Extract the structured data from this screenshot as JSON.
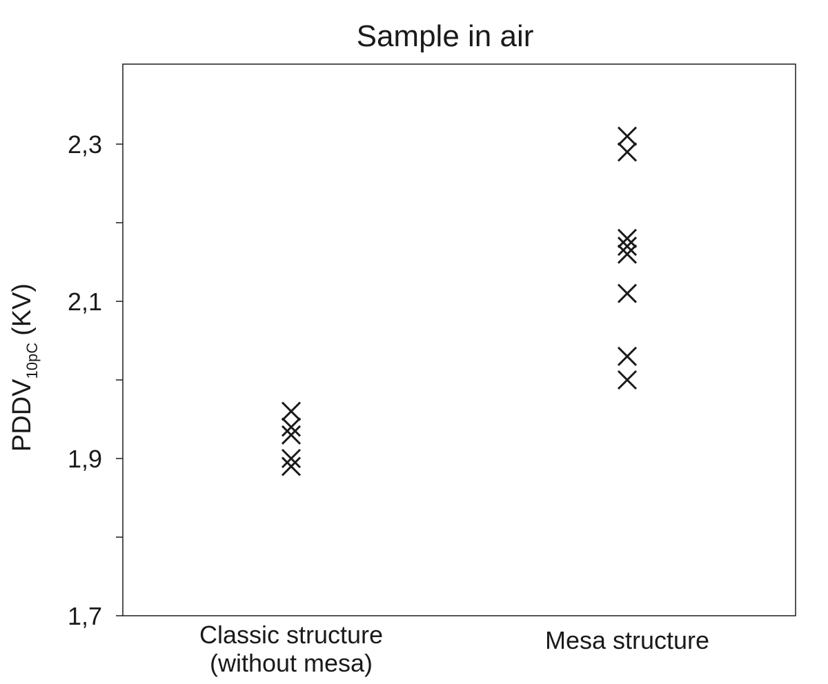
{
  "chart_data": {
    "type": "scatter",
    "title": "Sample in air",
    "ylabel": {
      "main_before": "PDDV",
      "subscript": "10pC",
      "main_after": "(KV)"
    },
    "categories": [
      [
        "Classic structure",
        "(without mesa)"
      ],
      [
        "Mesa structure"
      ]
    ],
    "series": [
      {
        "marker": "x",
        "color": "#1a1a1a",
        "points": [
          {
            "category": 0,
            "y": 1.96
          },
          {
            "category": 0,
            "y": 1.94
          },
          {
            "category": 0,
            "y": 1.93
          },
          {
            "category": 0,
            "y": 1.9
          },
          {
            "category": 0,
            "y": 1.89
          },
          {
            "category": 1,
            "y": 2.31
          },
          {
            "category": 1,
            "y": 2.29
          },
          {
            "category": 1,
            "y": 2.18
          },
          {
            "category": 1,
            "y": 2.17
          },
          {
            "category": 1,
            "y": 2.16
          },
          {
            "category": 1,
            "y": 2.11
          },
          {
            "category": 1,
            "y": 2.03
          },
          {
            "category": 1,
            "y": 2.0
          }
        ]
      }
    ],
    "ylim": [
      1.7,
      2.39
    ],
    "yticks_major": [
      1.7,
      1.9,
      2.1,
      2.3
    ],
    "ytick_labels": [
      "1,7",
      "1,9",
      "2,1",
      "2,3"
    ],
    "yticks_minor": [
      1.8,
      2.0,
      2.2
    ],
    "grid": false,
    "legend": "none"
  }
}
